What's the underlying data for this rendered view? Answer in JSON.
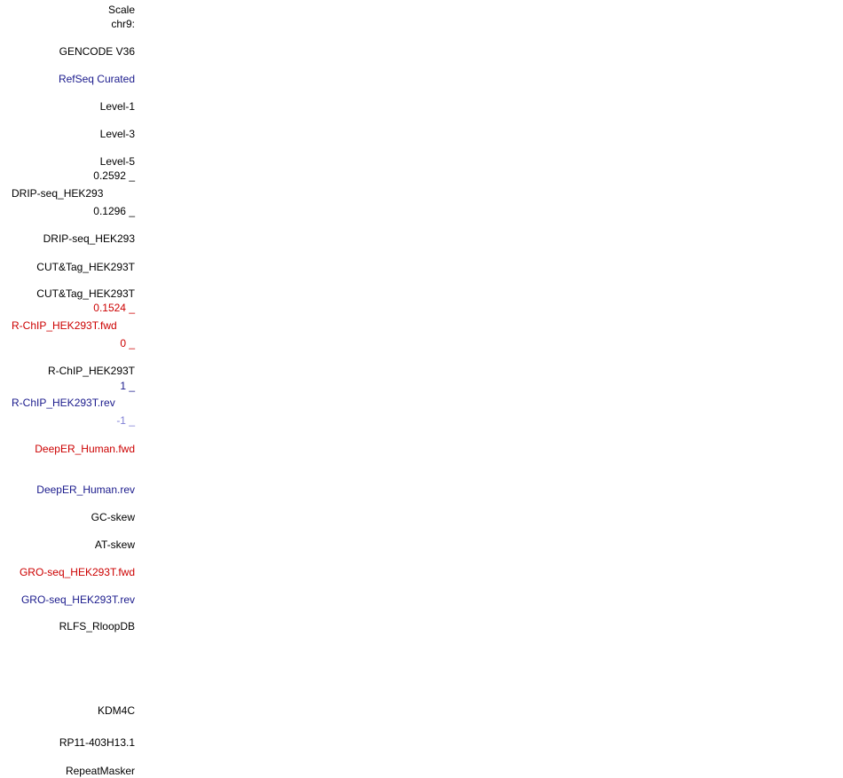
{
  "colors": {
    "black": "#000000",
    "navy": "#1a1a8c",
    "red": "#cc0000",
    "light_blue": "#7f7fd6"
  },
  "labels": {
    "scale": "Scale",
    "chrom": "chr9:",
    "gencode": "GENCODE V36",
    "refseq": "RefSeq Curated",
    "level1": "Level-1",
    "level3": "Level-3",
    "level5": "Level-5",
    "drip_max": "0.2592 _",
    "drip_name": "DRIP-seq_HEK293",
    "drip_min": "0.1296 _",
    "drip_track2": "DRIP-seq_HEK293",
    "cuttag1": "CUT&Tag_HEK293T",
    "cuttag2": "CUT&Tag_HEK293T",
    "rchip_fwd_max": "0.1524 _",
    "rchip_fwd_name": "R-ChIP_HEK293T.fwd",
    "rchip_fwd_min": "0 _",
    "rchip_track": "R-ChIP_HEK293T",
    "rchip_rev_max": "1 _",
    "rchip_rev_name": "R-ChIP_HEK293T.rev",
    "rchip_rev_min": "-1 _",
    "deeper_fwd": "DeepER_Human.fwd",
    "deeper_rev": "DeepER_Human.rev",
    "gc_skew": "GC-skew",
    "at_skew": "AT-skew",
    "gro_fwd": "GRO-seq_HEK293T.fwd",
    "gro_rev": "GRO-seq_HEK293T.rev",
    "rlfs": "RLFS_RloopDB",
    "kdm4c": "KDM4C",
    "rp11": "RP11-403H13.1",
    "repeatmasker": "RepeatMasker"
  }
}
